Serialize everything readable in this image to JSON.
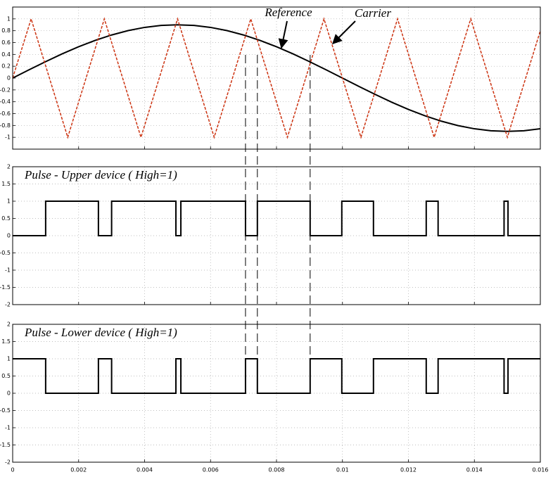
{
  "chart_data": [
    {
      "type": "line",
      "xlim": [
        0,
        0.016
      ],
      "xticks": [
        0,
        0.002,
        0.004,
        0.006,
        0.008,
        0.01,
        0.012,
        0.014,
        0.016
      ],
      "show_xtick_labels": false,
      "ylim": [
        -1.2,
        1.2
      ],
      "yticks": [
        -1,
        -0.8,
        -0.6,
        -0.4,
        -0.2,
        0,
        0.2,
        0.4,
        0.6,
        0.8,
        1
      ],
      "grid": true,
      "dashed_x": [
        0.00706,
        0.00742,
        0.00902
      ],
      "series": [
        {
          "name": "Reference",
          "color": "#000000",
          "x": [
            0,
            0.0005,
            0.001,
            0.0015,
            0.002,
            0.0025,
            0.003,
            0.0035,
            0.004,
            0.0045,
            0.005,
            0.0055,
            0.006,
            0.0065,
            0.007,
            0.0075,
            0.008,
            0.0085,
            0.009,
            0.0095,
            0.01,
            0.0105,
            0.011,
            0.0115,
            0.012,
            0.0125,
            0.013,
            0.0135,
            0.014,
            0.0145,
            0.015,
            0.0155,
            0.016
          ],
          "values": [
            0,
            0.141,
            0.278,
            0.409,
            0.529,
            0.636,
            0.728,
            0.802,
            0.856,
            0.889,
            0.9,
            0.889,
            0.856,
            0.802,
            0.728,
            0.636,
            0.529,
            0.409,
            0.278,
            0.141,
            0,
            -0.141,
            -0.278,
            -0.409,
            -0.529,
            -0.636,
            -0.728,
            -0.802,
            -0.856,
            -0.889,
            -0.9,
            -0.889,
            -0.856
          ]
        },
        {
          "name": "Carrier",
          "color": "#cc3311",
          "x": [
            0,
            0.00056,
            0.00167,
            0.00278,
            0.00389,
            0.005,
            0.00611,
            0.00722,
            0.00833,
            0.00944,
            0.01056,
            0.01167,
            0.01278,
            0.01389,
            0.015,
            0.016
          ],
          "values": [
            0,
            1,
            -1,
            1,
            -1,
            1,
            -1,
            1,
            -1,
            1,
            -1,
            1,
            -1,
            1,
            -1,
            0.8
          ]
        }
      ]
    },
    {
      "type": "line",
      "title": "Pulse -  Upper device ( High=1)",
      "xlim": [
        0,
        0.016
      ],
      "xticks": [
        0,
        0.002,
        0.004,
        0.006,
        0.008,
        0.01,
        0.012,
        0.014,
        0.016
      ],
      "show_xtick_labels": false,
      "ylim": [
        -2,
        2
      ],
      "yticks": [
        -2,
        -1.5,
        -1,
        -0.5,
        0,
        0.5,
        1,
        1.5,
        2
      ],
      "grid": true,
      "series": [
        {
          "color": "#000000",
          "x": [
            0,
            0.001,
            0.001,
            0.0026,
            0.0026,
            0.003,
            0.003,
            0.00495,
            0.00495,
            0.0051,
            0.0051,
            0.00706,
            0.00706,
            0.00742,
            0.00742,
            0.00902,
            0.00902,
            0.00998,
            0.00998,
            0.01094,
            0.01094,
            0.01254,
            0.01254,
            0.0129,
            0.0129,
            0.0149,
            0.0149,
            0.01502,
            0.01502,
            0.016
          ],
          "values": [
            0,
            0,
            1,
            1,
            0,
            0,
            1,
            1,
            0,
            0,
            1,
            1,
            0,
            0,
            1,
            1,
            0,
            0,
            1,
            1,
            0,
            0,
            1,
            1,
            0,
            0,
            1,
            1,
            0,
            0
          ]
        }
      ]
    },
    {
      "type": "line",
      "title": "Pulse -  Lower device ( High=1)",
      "xlim": [
        0,
        0.016
      ],
      "xticks": [
        0,
        0.002,
        0.004,
        0.006,
        0.008,
        0.01,
        0.012,
        0.014,
        0.016
      ],
      "show_xtick_labels": true,
      "ylim": [
        -2,
        2
      ],
      "yticks": [
        -2,
        -1.5,
        -1,
        -0.5,
        0,
        0.5,
        1,
        1.5,
        2
      ],
      "grid": true,
      "series": [
        {
          "color": "#000000",
          "x": [
            0,
            0.001,
            0.001,
            0.0026,
            0.0026,
            0.003,
            0.003,
            0.00495,
            0.00495,
            0.0051,
            0.0051,
            0.00706,
            0.00706,
            0.00742,
            0.00742,
            0.00902,
            0.00902,
            0.00998,
            0.00998,
            0.01094,
            0.01094,
            0.01254,
            0.01254,
            0.0129,
            0.0129,
            0.0149,
            0.0149,
            0.01502,
            0.01502,
            0.016
          ],
          "values": [
            1,
            1,
            0,
            0,
            1,
            1,
            0,
            0,
            1,
            1,
            0,
            0,
            1,
            1,
            0,
            0,
            1,
            1,
            0,
            0,
            1,
            1,
            0,
            0,
            1,
            1,
            0,
            0,
            1,
            1
          ]
        }
      ]
    }
  ]
}
